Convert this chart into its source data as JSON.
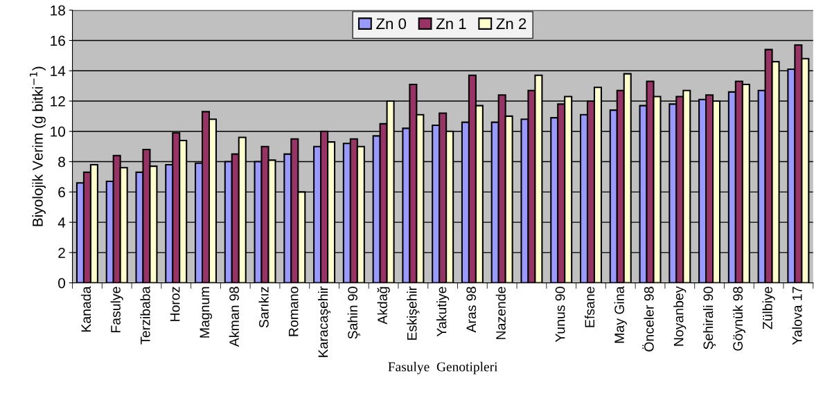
{
  "chart_data": {
    "type": "bar",
    "xlabel": "Fasulye  Genotipleri",
    "ylabel": "Biyolojik Verim (g bitki$^{−1}$)",
    "categories": [
      "Kanada",
      "Fasulye",
      "Terzibaba",
      "Horoz",
      "Magnum",
      "Akman 98",
      "Sarıkız",
      "Romano",
      "Karacaşehir",
      "Şahin 90",
      "Akdağ",
      "Eskişehir",
      "Yakutiye",
      "Aras 98",
      "Nazende",
      null,
      "Yunus 90",
      "Efsane",
      "May Gina",
      "Önceler 98",
      "Noyanbey",
      "Şehirali 90",
      "Göynük 98",
      "Zülbiye",
      "Yalova 17"
    ],
    "series": [
      {
        "name": "Zn 0",
        "color": "#9999ff",
        "values": [
          6.6,
          6.7,
          7.3,
          7.8,
          7.9,
          8.0,
          8.0,
          8.5,
          9.0,
          9.2,
          9.7,
          10.2,
          10.4,
          10.6,
          10.6,
          10.8,
          10.9,
          11.1,
          11.4,
          11.7,
          11.8,
          12.1,
          12.6,
          12.7,
          14.1
        ]
      },
      {
        "name": "Zn 1",
        "color": "#993366",
        "values": [
          7.3,
          8.4,
          8.8,
          9.9,
          11.3,
          8.5,
          9.0,
          9.5,
          10.0,
          9.5,
          10.5,
          13.1,
          11.2,
          13.7,
          12.4,
          12.7,
          11.8,
          12.0,
          12.7,
          13.3,
          12.3,
          12.4,
          13.3,
          15.4,
          15.7
        ]
      },
      {
        "name": "Zn 2",
        "color": "#ffffcc",
        "values": [
          7.8,
          7.6,
          7.7,
          9.4,
          10.8,
          9.6,
          8.1,
          6.0,
          9.3,
          9.0,
          12.0,
          11.1,
          10.0,
          11.7,
          11.0,
          13.7,
          12.3,
          12.9,
          13.8,
          12.3,
          12.7,
          12.0,
          13.1,
          14.6,
          14.8
        ]
      }
    ],
    "ylim": [
      0,
      18
    ],
    "yticks": [
      0,
      2,
      4,
      6,
      8,
      10,
      12,
      14,
      16,
      18
    ],
    "grid": "y",
    "legend": "top"
  }
}
